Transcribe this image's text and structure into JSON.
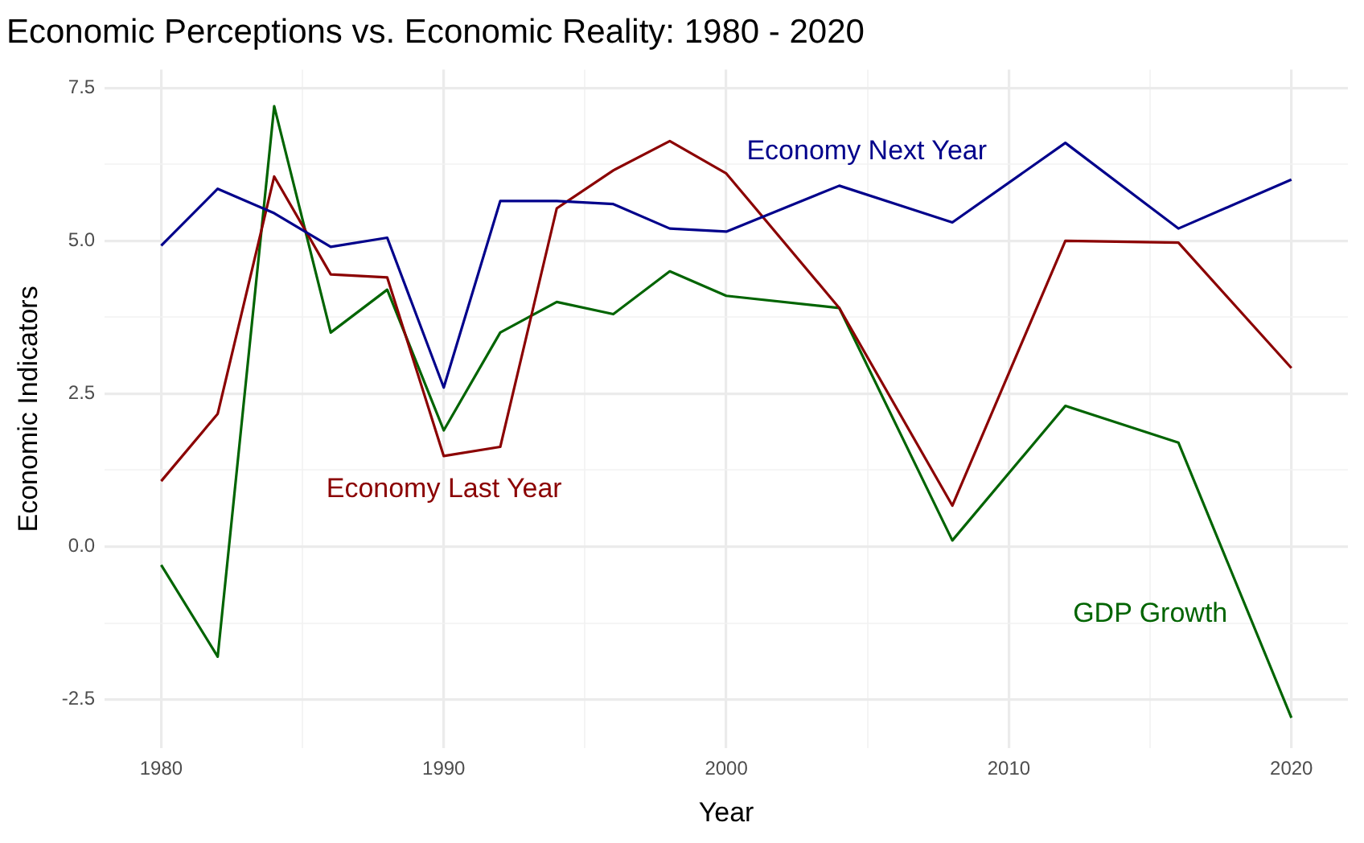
{
  "chart_data": {
    "type": "line",
    "title": "Economic Perceptions vs. Economic Reality: 1980 - 2020",
    "xlabel": "Year",
    "ylabel": "Economic Indicators",
    "x": [
      1980,
      1982,
      1984,
      1986,
      1988,
      1990,
      1992,
      1994,
      1996,
      1998,
      2000,
      2004,
      2008,
      2012,
      2016,
      2020
    ],
    "series": [
      {
        "name": "Economy Next Year",
        "color": "#00008b",
        "values": [
          4.92,
          5.85,
          5.45,
          4.9,
          5.05,
          2.6,
          5.65,
          5.65,
          5.6,
          5.2,
          5.15,
          5.9,
          5.3,
          6.6,
          5.2,
          6.0
        ]
      },
      {
        "name": "Economy Last Year",
        "color": "#8b0000",
        "values": [
          1.07,
          2.17,
          6.05,
          4.45,
          4.4,
          1.48,
          1.63,
          5.53,
          6.15,
          6.63,
          6.1,
          3.9,
          0.67,
          5.0,
          4.97,
          2.92
        ]
      },
      {
        "name": "GDP Growth",
        "color": "#006400",
        "values": [
          -0.3,
          -1.8,
          7.2,
          3.5,
          4.2,
          1.9,
          3.5,
          4.0,
          3.8,
          4.5,
          4.1,
          3.9,
          0.1,
          2.3,
          1.7,
          -2.8
        ]
      }
    ],
    "xlim": [
      1978,
      2022
    ],
    "ylim": [
      -3.3,
      7.8
    ],
    "xticks": [
      1980,
      {
        "value": 1985,
        "label": null
      },
      1990,
      {
        "value": 1995,
        "label": null
      },
      2000,
      {
        "value": 2005,
        "label": null
      },
      2010,
      {
        "value": 2015,
        "label": null
      },
      2020
    ],
    "yticks": [
      -2.5,
      {
        "value": -1.25,
        "label": null
      },
      {
        "value": 0,
        "label": "0.0"
      },
      {
        "value": 1.25,
        "label": null
      },
      2.5,
      {
        "value": 3.75,
        "label": null
      },
      {
        "value": 5,
        "label": "5.0"
      },
      {
        "value": 6.25,
        "label": null
      },
      7.5
    ],
    "grid": true,
    "legend": false,
    "marker": "none",
    "line_style": "solid"
  }
}
